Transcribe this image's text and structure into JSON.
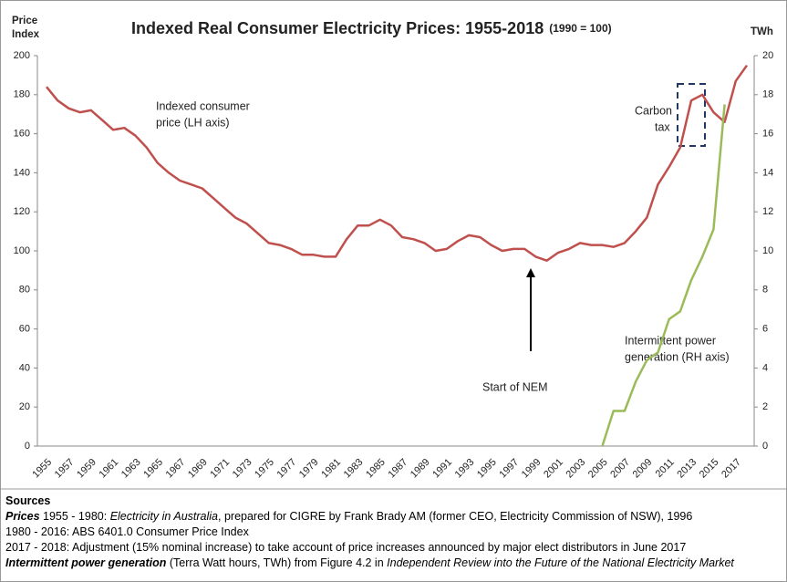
{
  "chart_data": {
    "type": "line",
    "title": "Indexed Real Consumer Electricity Prices: 1955-2018",
    "subtitle": "(1990 = 100)",
    "y_label": [
      "Price",
      "Index"
    ],
    "y2_label": "TWh",
    "categories": [
      "1955",
      null,
      "1957",
      null,
      "1959",
      null,
      "1961",
      null,
      "1963",
      null,
      "1965",
      null,
      "1967",
      null,
      "1969",
      null,
      "1971",
      null,
      "1973",
      null,
      "1975",
      null,
      "1977",
      null,
      "1979",
      null,
      "1981",
      null,
      "1983",
      null,
      "1985",
      null,
      "1987",
      null,
      "1989",
      null,
      "1991",
      null,
      "1993",
      null,
      "1995",
      null,
      "1997",
      null,
      "1999",
      null,
      "2001",
      null,
      "2003",
      null,
      "2005",
      null,
      "2007",
      null,
      "2009",
      null,
      "2011",
      null,
      "2013",
      null,
      "2015",
      null,
      "2017",
      null
    ],
    "series": [
      {
        "name": "Indexed consumer price (LH axis)",
        "color": "#c0504d",
        "values": [
          184,
          177,
          173,
          171,
          172,
          167,
          162,
          163,
          159,
          153,
          145,
          140,
          136,
          134,
          132,
          127,
          122,
          117,
          114,
          109,
          104,
          103,
          101,
          98,
          98,
          97,
          97,
          106,
          113,
          113,
          116,
          113,
          107,
          106,
          104,
          100,
          101,
          105,
          108,
          107,
          103,
          100,
          101,
          101,
          97,
          95,
          99,
          101,
          104,
          103,
          103,
          102,
          104,
          110,
          117,
          134,
          143,
          153,
          177,
          180,
          171,
          166,
          187,
          195
        ]
      },
      {
        "name": "Intermittent power generation (RH axis)",
        "color": "#9bbb59",
        "axis": "y2",
        "values": [
          null,
          null,
          null,
          null,
          null,
          null,
          null,
          null,
          null,
          null,
          null,
          null,
          null,
          null,
          null,
          null,
          null,
          null,
          null,
          null,
          null,
          null,
          null,
          null,
          null,
          null,
          null,
          null,
          null,
          null,
          null,
          null,
          null,
          null,
          null,
          null,
          null,
          null,
          null,
          null,
          null,
          null,
          null,
          null,
          null,
          null,
          null,
          null,
          null,
          null,
          0,
          1.8,
          1.8,
          3.3,
          4.4,
          4.8,
          6.5,
          6.9,
          8.5,
          9.7,
          11.1,
          17.5,
          null,
          null
        ]
      }
    ],
    "ylim": [
      0,
      200
    ],
    "yticks": [
      0,
      20,
      40,
      60,
      80,
      100,
      120,
      140,
      160,
      180,
      200
    ],
    "y2lim": [
      0,
      20
    ],
    "y2ticks": [
      0,
      2,
      4,
      6,
      8,
      10,
      12,
      14,
      16,
      18,
      20
    ],
    "annotations": {
      "price_label": [
        "Indexed consumer",
        "price (LH axis)"
      ],
      "carbon_tax": [
        "Carbon",
        "tax"
      ],
      "generation_label": [
        "Intermittent power",
        "generation (RH axis)"
      ],
      "nem": "Start of NEM"
    }
  },
  "sources": {
    "heading": "Sources",
    "lines": [
      [
        "Prices",
        " 1955 - 1980: ",
        "Electricity in Australia",
        ", prepared for CIGRE by Frank Brady AM (former CEO, Electricity Commission of NSW), 1996"
      ],
      [
        "1980 - 2016: ABS 6401.0 Consumer Price Index"
      ],
      [
        "2017 - 2018: Adjustment (15% nominal increase) to take account of price increases announced by major elect distributors in June 2017"
      ],
      [
        "Intermittent power generation",
        " (Terra Watt hours, TWh) from Figure 4.2 in ",
        "Independent Review into the Future of the National Electricity Market"
      ]
    ]
  }
}
